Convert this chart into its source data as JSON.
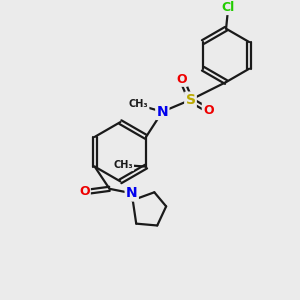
{
  "bg_color": "#ebebeb",
  "bond_color": "#1a1a1a",
  "bond_width": 1.6,
  "atom_colors": {
    "N": "#0000ee",
    "O": "#ee0000",
    "S": "#bbaa00",
    "Cl": "#22cc00",
    "C": "#1a1a1a"
  }
}
